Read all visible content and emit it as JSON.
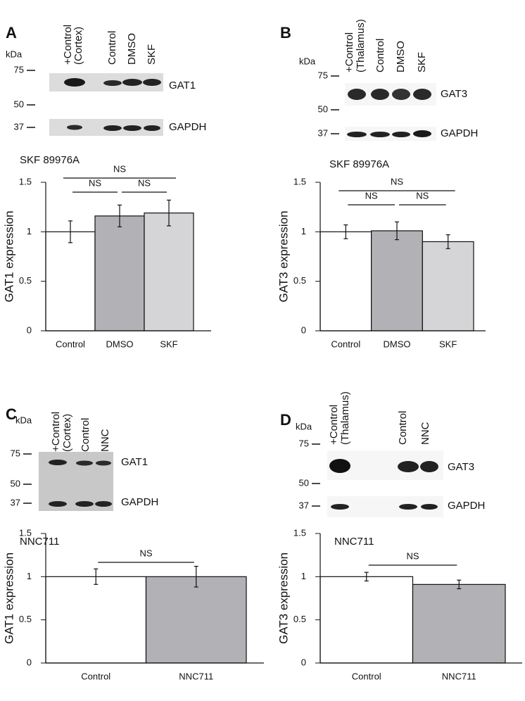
{
  "panels": [
    {
      "letter": "A",
      "blot": {
        "kda": "kDa",
        "markers": [
          "75",
          "50",
          "37"
        ],
        "lanes": [
          [
            "+Control",
            "(Cortex)"
          ],
          [
            "Control"
          ],
          [
            "DMSO"
          ],
          [
            "SKF"
          ]
        ],
        "proteins": [
          "GAT1",
          "GAPDH"
        ]
      }
    },
    {
      "letter": "B",
      "blot": {
        "kda": "kDa",
        "markers": [
          "75",
          "50",
          "37"
        ],
        "lanes": [
          [
            "+Control",
            "(Thalamus)"
          ],
          [
            "Control"
          ],
          [
            "DMSO"
          ],
          [
            "SKF"
          ]
        ],
        "proteins": [
          "GAT3",
          "GAPDH"
        ]
      }
    },
    {
      "letter": "C",
      "blot": {
        "kda": "kDa",
        "markers": [
          "75",
          "50",
          "37"
        ],
        "lanes": [
          [
            "+Control",
            "(Cortex)"
          ],
          [
            "Control"
          ],
          [
            "NNC"
          ]
        ],
        "proteins": [
          "GAT1",
          "GAPDH"
        ]
      }
    },
    {
      "letter": "D",
      "blot": {
        "kda": "kDa",
        "markers": [
          "75",
          "50",
          "37"
        ],
        "lanes": [
          [
            "+Control",
            "(Thalamus)"
          ],
          [
            "Control"
          ],
          [
            "NNC"
          ]
        ],
        "proteins": [
          "GAT3",
          "GAPDH"
        ]
      }
    }
  ],
  "chart_data": [
    {
      "type": "bar",
      "title": "SKF 89976A",
      "y_label": "GAT1 expression",
      "categories": [
        "Control",
        "DMSO",
        "SKF"
      ],
      "values": [
        1.0,
        1.16,
        1.19
      ],
      "errors": [
        0.11,
        0.11,
        0.13
      ],
      "colors": [
        "#ffffff",
        "#b2b2b6",
        "#d5d5d7"
      ],
      "ylim": [
        0,
        1.5
      ],
      "yticks": [
        0,
        0.5,
        1,
        1.5
      ],
      "comparisons": [
        {
          "label": "NS",
          "between": [
            "Control",
            "SKF"
          ]
        },
        {
          "label": "NS",
          "between": [
            "Control",
            "DMSO"
          ]
        },
        {
          "label": "NS",
          "between": [
            "DMSO",
            "SKF"
          ]
        }
      ]
    },
    {
      "type": "bar",
      "title": "SKF 89976A",
      "y_label": "GAT3 expression",
      "categories": [
        "Control",
        "DMSO",
        "SKF"
      ],
      "values": [
        1.0,
        1.01,
        0.9
      ],
      "errors": [
        0.07,
        0.09,
        0.07
      ],
      "colors": [
        "#ffffff",
        "#b2b2b6",
        "#d5d5d7"
      ],
      "ylim": [
        0,
        1.5
      ],
      "yticks": [
        0,
        0.5,
        1,
        1.5
      ],
      "comparisons": [
        {
          "label": "NS",
          "between": [
            "Control",
            "SKF"
          ]
        },
        {
          "label": "NS",
          "between": [
            "Control",
            "DMSO"
          ]
        },
        {
          "label": "NS",
          "between": [
            "DMSO",
            "SKF"
          ]
        }
      ]
    },
    {
      "type": "bar",
      "title": "NNC711",
      "y_label": "GAT1 expression",
      "categories": [
        "Control",
        "NNC711"
      ],
      "values": [
        1.0,
        1.0
      ],
      "errors": [
        0.09,
        0.12
      ],
      "colors": [
        "#ffffff",
        "#b2b2b6"
      ],
      "ylim": [
        0,
        1.5
      ],
      "yticks": [
        0,
        0.5,
        1,
        1.5
      ],
      "comparisons": [
        {
          "label": "NS",
          "between": [
            "Control",
            "NNC711"
          ]
        }
      ]
    },
    {
      "type": "bar",
      "title": "NNC711",
      "y_label": "GAT3 expression",
      "categories": [
        "Control",
        "NNC711"
      ],
      "values": [
        1.0,
        0.91
      ],
      "errors": [
        0.05,
        0.05
      ],
      "colors": [
        "#ffffff",
        "#b2b2b6"
      ],
      "ylim": [
        0,
        1.5
      ],
      "yticks": [
        0,
        0.5,
        1,
        1.5
      ],
      "comparisons": [
        {
          "label": "NS",
          "between": [
            "Control",
            "NNC711"
          ]
        }
      ]
    }
  ]
}
